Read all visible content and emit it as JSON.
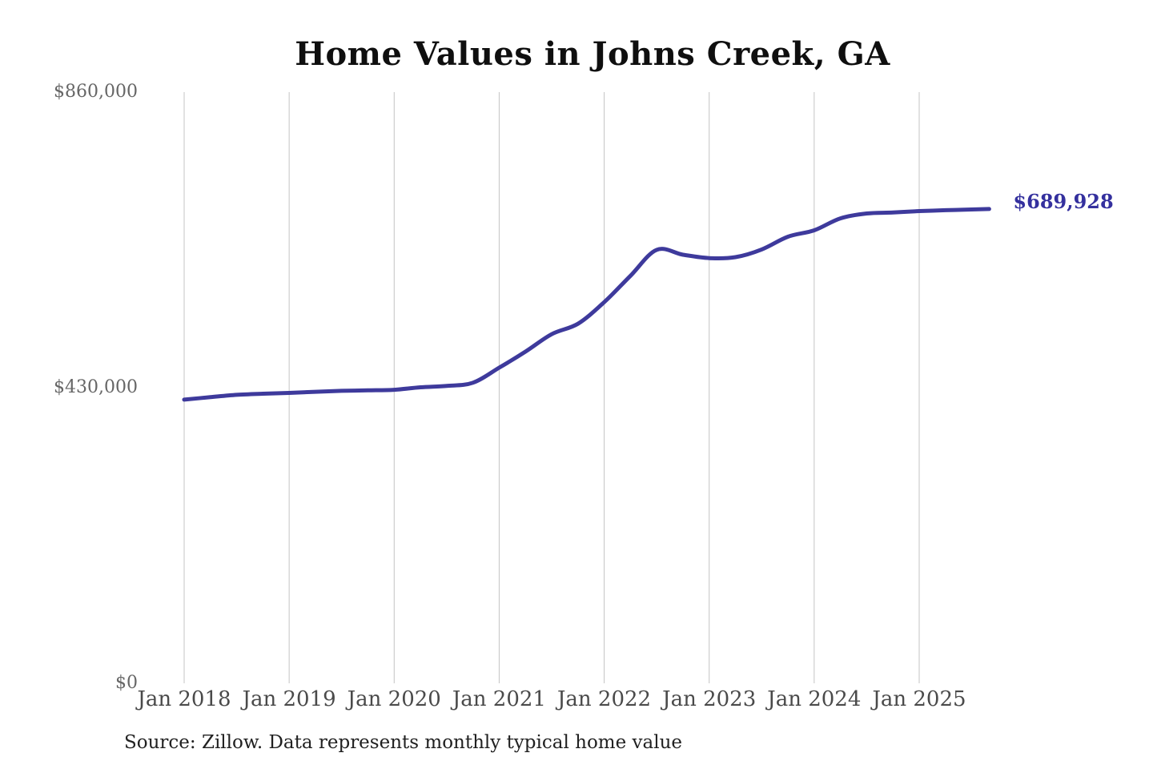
{
  "title": "Home Values in Johns Creek, GA",
  "source_note": "Source: Zillow. Data represents monthly typical home value",
  "colors": {
    "line": "#3e3a9c",
    "grid": "#c4c4c4",
    "end_label_text": "#34309e",
    "background": "#ffffff"
  },
  "chart_data": {
    "type": "line",
    "title": "Home Values in Johns Creek, GA",
    "unit": "USD",
    "grid": "vertical-only",
    "legend": "none",
    "ylim": [
      0,
      860000
    ],
    "y_ticks": [
      {
        "label": "$860,000",
        "value": 860000
      },
      {
        "label": "$430,000",
        "value": 430000
      },
      {
        "label": "$0",
        "value": 0
      }
    ],
    "x_ticks": [
      {
        "label": "Jan 2018",
        "year": 2018
      },
      {
        "label": "Jan 2019",
        "year": 2019
      },
      {
        "label": "Jan 2020",
        "year": 2020
      },
      {
        "label": "Jan 2021",
        "year": 2021
      },
      {
        "label": "Jan 2022",
        "year": 2022
      },
      {
        "label": "Jan 2023",
        "year": 2023
      },
      {
        "label": "Jan 2024",
        "year": 2024
      },
      {
        "label": "Jan 2025",
        "year": 2025
      }
    ],
    "series": [
      {
        "name": "Monthly typical home value",
        "points": [
          {
            "date": "2018-01",
            "value": 412600
          },
          {
            "date": "2018-04",
            "value": 416300
          },
          {
            "date": "2018-07",
            "value": 419600
          },
          {
            "date": "2018-10",
            "value": 421300
          },
          {
            "date": "2019-01",
            "value": 422400
          },
          {
            "date": "2019-04",
            "value": 424100
          },
          {
            "date": "2019-07",
            "value": 425400
          },
          {
            "date": "2019-10",
            "value": 426100
          },
          {
            "date": "2020-01",
            "value": 427000
          },
          {
            "date": "2020-04",
            "value": 430600
          },
          {
            "date": "2020-07",
            "value": 432600
          },
          {
            "date": "2020-10",
            "value": 437200
          },
          {
            "date": "2021-01",
            "value": 459100
          },
          {
            "date": "2021-04",
            "value": 482400
          },
          {
            "date": "2021-07",
            "value": 507900
          },
          {
            "date": "2021-10",
            "value": 523000
          },
          {
            "date": "2022-01",
            "value": 554400
          },
          {
            "date": "2022-04",
            "value": 592800
          },
          {
            "date": "2022-07",
            "value": 630600
          },
          {
            "date": "2022-10",
            "value": 623500
          },
          {
            "date": "2023-01",
            "value": 618500
          },
          {
            "date": "2023-04",
            "value": 620000
          },
          {
            "date": "2023-07",
            "value": 631100
          },
          {
            "date": "2023-10",
            "value": 649700
          },
          {
            "date": "2024-01",
            "value": 659000
          },
          {
            "date": "2024-04",
            "value": 676400
          },
          {
            "date": "2024-07",
            "value": 683400
          },
          {
            "date": "2024-10",
            "value": 684800
          },
          {
            "date": "2025-01",
            "value": 686900
          },
          {
            "date": "2025-04",
            "value": 688200
          },
          {
            "date": "2025-07",
            "value": 689300
          },
          {
            "date": "2025-09",
            "value": 689928
          }
        ]
      }
    ],
    "final_value": 689928,
    "final_value_label": "$689,928"
  }
}
